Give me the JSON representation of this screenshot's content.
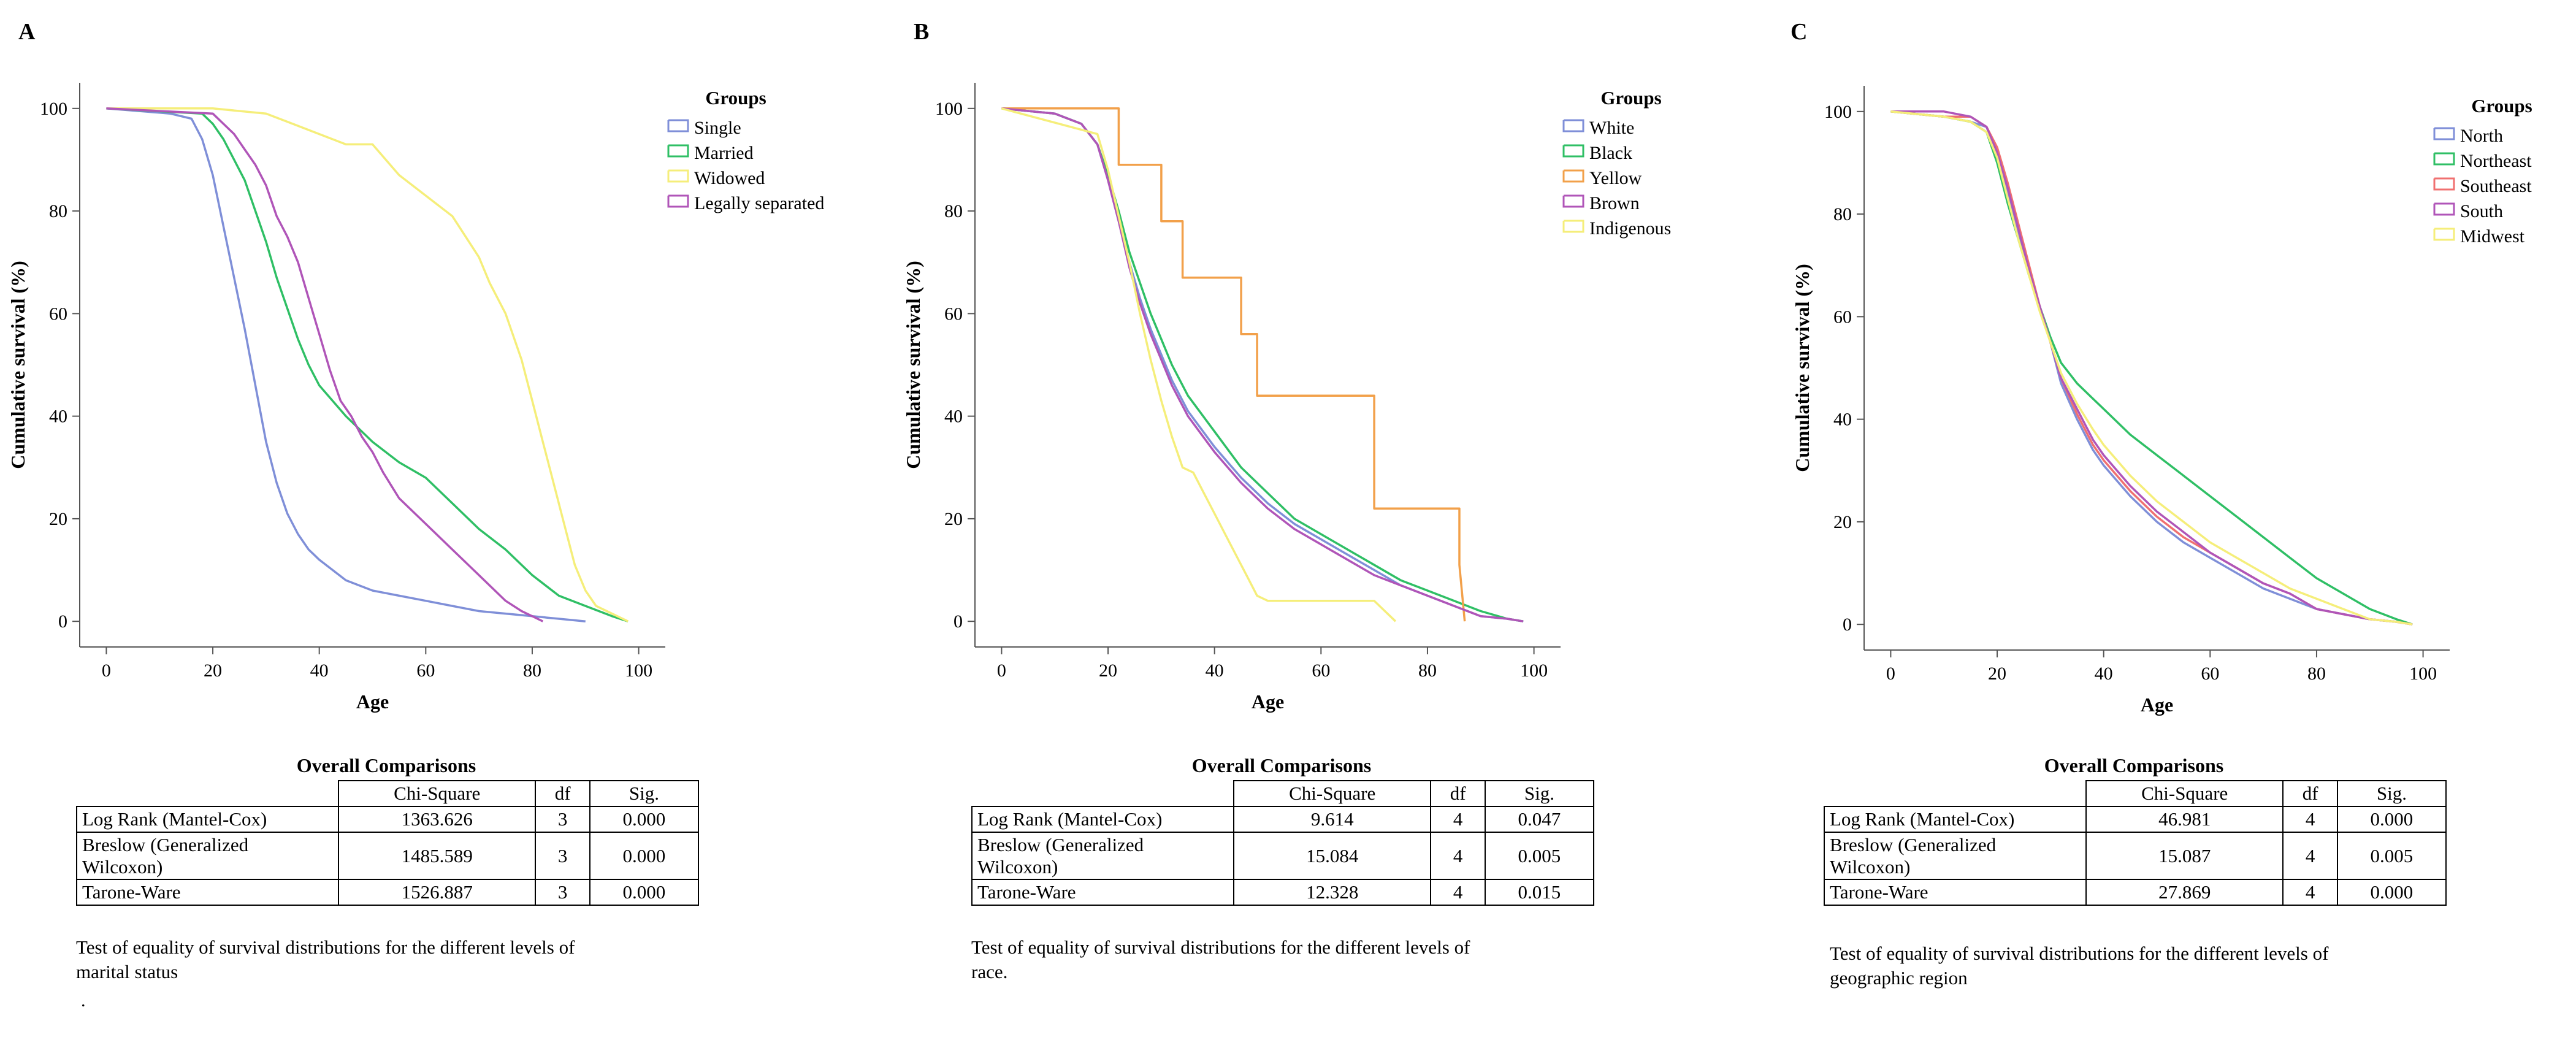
{
  "colors": [
    "#7f8fd8",
    "#2fbf65",
    "#f5ee7a",
    "#b055b8",
    "#f2a04a"
  ],
  "chart_data": [
    {
      "type": "line",
      "panel": "A",
      "title": "",
      "xlabel": "Age",
      "ylabel": "Cumulative survival (%)",
      "xlim": [
        -5,
        105
      ],
      "ylim": [
        -5,
        105
      ],
      "xticks": [
        0,
        20,
        40,
        60,
        80,
        100
      ],
      "yticks": [
        0,
        20,
        40,
        60,
        80,
        100
      ],
      "legend_title": "Groups",
      "legend_position": "top-right",
      "series": [
        {
          "name": "Single",
          "color": "#7f8fd8",
          "x": [
            0,
            12,
            16,
            18,
            20,
            22,
            24,
            26,
            28,
            30,
            32,
            34,
            36,
            38,
            40,
            45,
            50,
            55,
            60,
            65,
            70,
            75,
            80,
            85,
            90
          ],
          "y": [
            100,
            99,
            98,
            94,
            87,
            77,
            67,
            57,
            46,
            35,
            27,
            21,
            17,
            14,
            12,
            8,
            6,
            5,
            4,
            3,
            2,
            1.5,
            1,
            0.5,
            0
          ]
        },
        {
          "name": "Married",
          "color": "#2fbf65",
          "x": [
            0,
            18,
            20,
            22,
            24,
            26,
            28,
            30,
            32,
            34,
            36,
            38,
            40,
            45,
            50,
            55,
            60,
            65,
            70,
            75,
            80,
            85,
            90,
            95,
            98
          ],
          "y": [
            100,
            99,
            97,
            94,
            90,
            86,
            80,
            74,
            67,
            61,
            55,
            50,
            46,
            40,
            35,
            31,
            28,
            23,
            18,
            14,
            9,
            5,
            3,
            1,
            0
          ]
        },
        {
          "name": "Widowed",
          "color": "#f5ee7a",
          "x": [
            0,
            20,
            30,
            35,
            40,
            45,
            50,
            55,
            60,
            65,
            70,
            72,
            75,
            78,
            80,
            82,
            84,
            86,
            88,
            90,
            92,
            94,
            96,
            98
          ],
          "y": [
            100,
            100,
            99,
            97,
            95,
            93,
            93,
            87,
            83,
            79,
            71,
            66,
            60,
            51,
            43,
            35,
            27,
            19,
            11,
            6,
            3,
            2,
            1,
            0
          ]
        },
        {
          "name": "Legally separated",
          "color": "#b055b8",
          "x": [
            0,
            20,
            22,
            24,
            26,
            28,
            30,
            32,
            34,
            36,
            38,
            40,
            42,
            44,
            46,
            48,
            50,
            52,
            55,
            60,
            65,
            70,
            75,
            78,
            80,
            82
          ],
          "y": [
            100,
            99,
            97,
            95,
            92,
            89,
            85,
            79,
            75,
            70,
            63,
            56,
            49,
            43,
            40,
            36,
            33,
            29,
            24,
            19,
            14,
            9,
            4,
            2,
            1,
            0
          ]
        }
      ]
    },
    {
      "type": "line",
      "panel": "B",
      "title": "",
      "xlabel": "Age",
      "ylabel": "Cumulative survival (%)",
      "xlim": [
        -5,
        105
      ],
      "ylim": [
        -5,
        105
      ],
      "xticks": [
        0,
        20,
        40,
        60,
        80,
        100
      ],
      "yticks": [
        0,
        20,
        40,
        60,
        80,
        100
      ],
      "legend_title": "Groups",
      "legend_position": "top-right",
      "series": [
        {
          "name": "White",
          "color": "#7f8fd8",
          "x": [
            0,
            10,
            15,
            18,
            20,
            22,
            24,
            26,
            28,
            30,
            32,
            35,
            40,
            45,
            50,
            55,
            60,
            65,
            70,
            75,
            80,
            85,
            90,
            95,
            98
          ],
          "y": [
            100,
            99,
            97,
            93,
            86,
            78,
            70,
            63,
            57,
            52,
            47,
            41,
            34,
            28,
            23,
            19,
            16,
            13,
            10,
            7,
            5,
            3,
            1,
            0.5,
            0
          ]
        },
        {
          "name": "Black",
          "color": "#2fbf65",
          "x": [
            0,
            10,
            15,
            18,
            20,
            22,
            24,
            26,
            28,
            30,
            32,
            35,
            40,
            45,
            50,
            55,
            60,
            65,
            70,
            75,
            80,
            85,
            90,
            95,
            98
          ],
          "y": [
            100,
            99,
            97,
            93,
            87,
            80,
            72,
            66,
            60,
            55,
            50,
            44,
            37,
            30,
            25,
            20,
            17,
            14,
            11,
            8,
            6,
            4,
            2,
            0.5,
            0
          ]
        },
        {
          "name": "Yellow",
          "color": "#f2a04a",
          "x": [
            0,
            22,
            22,
            30,
            30,
            34,
            34,
            45,
            45,
            48,
            48,
            70,
            70,
            86,
            86,
            87
          ],
          "y": [
            100,
            100,
            89,
            89,
            78,
            78,
            67,
            67,
            56,
            56,
            44,
            44,
            22,
            22,
            11,
            0
          ]
        },
        {
          "name": "Brown",
          "color": "#b055b8",
          "x": [
            0,
            10,
            15,
            18,
            20,
            22,
            24,
            26,
            28,
            30,
            32,
            35,
            40,
            45,
            50,
            55,
            60,
            65,
            70,
            75,
            80,
            85,
            90,
            95,
            98
          ],
          "y": [
            100,
            99,
            97,
            93,
            86,
            78,
            69,
            62,
            56,
            51,
            46,
            40,
            33,
            27,
            22,
            18,
            15,
            12,
            9,
            7,
            5,
            3,
            1,
            0.5,
            0
          ]
        },
        {
          "name": "Indigenous",
          "color": "#f5ee7a",
          "x": [
            0,
            18,
            20,
            22,
            24,
            26,
            28,
            30,
            32,
            34,
            36,
            38,
            40,
            42,
            44,
            46,
            48,
            50,
            52,
            60,
            70,
            72,
            74
          ],
          "y": [
            100,
            95,
            88,
            79,
            70,
            60,
            51,
            43,
            36,
            30,
            29,
            25,
            21,
            17,
            13,
            9,
            5,
            4,
            4,
            4,
            4,
            2,
            0
          ]
        }
      ]
    },
    {
      "type": "line",
      "panel": "C",
      "title": "",
      "xlabel": "Age",
      "ylabel": "Cumulative survival (%)",
      "xlim": [
        -5,
        105
      ],
      "ylim": [
        -5,
        105
      ],
      "xticks": [
        0,
        20,
        40,
        60,
        80,
        100
      ],
      "yticks": [
        0,
        20,
        40,
        60,
        80,
        100
      ],
      "legend_title": "Groups",
      "legend_position": "top-right",
      "series": [
        {
          "name": "North",
          "color": "#7f8fd8",
          "x": [
            0,
            10,
            15,
            18,
            20,
            22,
            24,
            26,
            28,
            30,
            32,
            35,
            38,
            40,
            45,
            50,
            55,
            60,
            65,
            70,
            75,
            80,
            85,
            90,
            95,
            98
          ],
          "y": [
            100,
            99,
            98,
            97,
            92,
            84,
            76,
            69,
            62,
            55,
            47,
            40,
            34,
            31,
            25,
            20,
            16,
            13,
            10,
            7,
            5,
            3,
            2,
            1,
            0.5,
            0
          ]
        },
        {
          "name": "Northeast",
          "color": "#2fbf65",
          "x": [
            0,
            10,
            15,
            18,
            20,
            22,
            24,
            26,
            28,
            30,
            32,
            35,
            38,
            40,
            45,
            50,
            55,
            60,
            65,
            70,
            75,
            80,
            85,
            90,
            95,
            98
          ],
          "y": [
            100,
            99,
            98,
            96,
            90,
            82,
            75,
            68,
            62,
            56,
            51,
            47,
            44,
            42,
            37,
            33,
            29,
            25,
            21,
            17,
            13,
            9,
            6,
            3,
            1,
            0
          ]
        },
        {
          "name": "Southeast",
          "color": "#f07070",
          "x": [
            0,
            10,
            15,
            18,
            20,
            22,
            24,
            26,
            28,
            30,
            32,
            35,
            38,
            40,
            45,
            50,
            55,
            60,
            65,
            70,
            75,
            80,
            85,
            90,
            95,
            98
          ],
          "y": [
            100,
            99,
            99,
            97,
            93,
            86,
            78,
            70,
            62,
            55,
            48,
            41,
            35,
            32,
            26,
            21,
            17,
            14,
            11,
            8,
            6,
            3,
            2,
            1,
            0.5,
            0
          ]
        },
        {
          "name": "South",
          "color": "#b055b8",
          "x": [
            0,
            10,
            15,
            18,
            20,
            22,
            24,
            26,
            28,
            30,
            32,
            35,
            38,
            40,
            45,
            50,
            55,
            60,
            65,
            70,
            75,
            80,
            85,
            90,
            95,
            98
          ],
          "y": [
            100,
            100,
            99,
            97,
            92,
            85,
            77,
            69,
            62,
            55,
            48,
            42,
            36,
            33,
            27,
            22,
            18,
            14,
            11,
            8,
            6,
            3,
            2,
            1,
            0.5,
            0
          ]
        },
        {
          "name": "Midwest",
          "color": "#f5ee7a",
          "x": [
            0,
            10,
            15,
            18,
            20,
            22,
            24,
            26,
            28,
            30,
            32,
            35,
            38,
            40,
            45,
            50,
            55,
            60,
            65,
            70,
            75,
            80,
            85,
            90,
            95,
            98
          ],
          "y": [
            100,
            99,
            98,
            96,
            91,
            83,
            75,
            68,
            61,
            55,
            49,
            43,
            38,
            35,
            29,
            24,
            20,
            16,
            13,
            10,
            7,
            5,
            3,
            1,
            0.5,
            0
          ]
        }
      ]
    }
  ],
  "panels": [
    {
      "letter": "A",
      "comparisons": {
        "title": "Overall Comparisons",
        "headers": [
          "Chi-Square",
          "df",
          "Sig."
        ],
        "rows": [
          {
            "label": "Log Rank (Mantel-Cox)",
            "label2": "",
            "chi": "1363.626",
            "df": "3",
            "sig": "0.000"
          },
          {
            "label": "Breslow (Generalized",
            "label2": "Wilcoxon)",
            "chi": "1485.589",
            "df": "3",
            "sig": "0.000"
          },
          {
            "label": "Tarone-Ware",
            "label2": "",
            "chi": "1526.887",
            "df": "3",
            "sig": "0.000"
          }
        ],
        "caption_line1": "Test of equality of survival distributions for the different levels of",
        "caption_line2": "marital status"
      }
    },
    {
      "letter": "B",
      "comparisons": {
        "title": "Overall Comparisons",
        "headers": [
          "Chi-Square",
          "df",
          "Sig."
        ],
        "rows": [
          {
            "label": "Log Rank (Mantel-Cox)",
            "label2": "",
            "chi": "9.614",
            "df": "4",
            "sig": "0.047"
          },
          {
            "label": "Breslow (Generalized",
            "label2": "Wilcoxon)",
            "chi": "15.084",
            "df": "4",
            "sig": "0.005"
          },
          {
            "label": "Tarone-Ware",
            "label2": "",
            "chi": "12.328",
            "df": "4",
            "sig": "0.015"
          }
        ],
        "caption_line1": "Test of equality of survival distributions for the different levels of",
        "caption_line2": "race."
      }
    },
    {
      "letter": "C",
      "comparisons": {
        "title": "Overall Comparisons",
        "headers": [
          "Chi-Square",
          "df",
          "Sig."
        ],
        "rows": [
          {
            "label": "Log Rank (Mantel-Cox)",
            "label2": "",
            "chi": "46.981",
            "df": "4",
            "sig": "0.000"
          },
          {
            "label": "Breslow (Generalized",
            "label2": "Wilcoxon)",
            "chi": "15.087",
            "df": "4",
            "sig": "0.005"
          },
          {
            "label": "Tarone-Ware",
            "label2": "",
            "chi": "27.869",
            "df": "4",
            "sig": "0.000"
          }
        ],
        "caption_line1": "Test of equality of survival distributions for the different levels of",
        "caption_line2": "geographic region"
      }
    }
  ],
  "stray_mark": "."
}
